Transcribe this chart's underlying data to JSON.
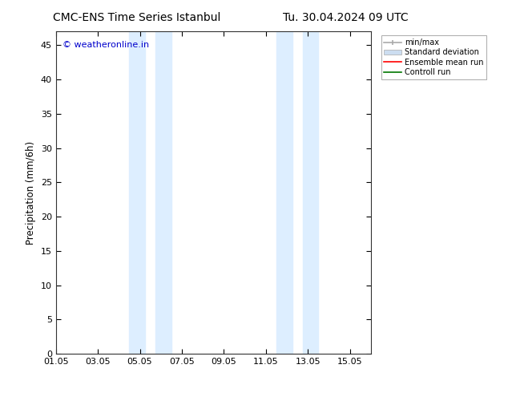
{
  "title_left": "CMC-ENS Time Series Istanbul",
  "title_right": "Tu. 30.04.2024 09 UTC",
  "ylabel": "Precipitation (mm/6h)",
  "watermark": "© weatheronline.in",
  "watermark_color": "#0000cc",
  "ylim": [
    0,
    47
  ],
  "yticks": [
    0,
    5,
    10,
    15,
    20,
    25,
    30,
    35,
    40,
    45
  ],
  "xlim": [
    0,
    15
  ],
  "xtick_labels": [
    "01.05",
    "03.05",
    "05.05",
    "07.05",
    "09.05",
    "11.05",
    "13.05",
    "15.05"
  ],
  "xtick_positions_days": [
    0,
    2,
    4,
    6,
    8,
    10,
    12,
    14
  ],
  "shaded_regions": [
    {
      "start_day": 3.5,
      "end_day": 4.25,
      "color": "#ddeeff"
    },
    {
      "start_day": 4.75,
      "end_day": 5.5,
      "color": "#ddeeff"
    },
    {
      "start_day": 10.5,
      "end_day": 11.25,
      "color": "#ddeeff"
    },
    {
      "start_day": 11.75,
      "end_day": 12.5,
      "color": "#ddeeff"
    }
  ],
  "legend_items": [
    {
      "label": "min/max",
      "color": "#aaaaaa",
      "lw": 1.2
    },
    {
      "label": "Standard deviation",
      "color": "#ccddf0",
      "lw": 6
    },
    {
      "label": "Ensemble mean run",
      "color": "#ff0000",
      "lw": 1.2
    },
    {
      "label": "Controll run",
      "color": "#007700",
      "lw": 1.2
    }
  ],
  "bg_color": "#ffffff",
  "plot_bg_color": "#ffffff",
  "tick_fontsize": 8,
  "label_fontsize": 8.5,
  "title_fontsize": 10,
  "watermark_fontsize": 8
}
